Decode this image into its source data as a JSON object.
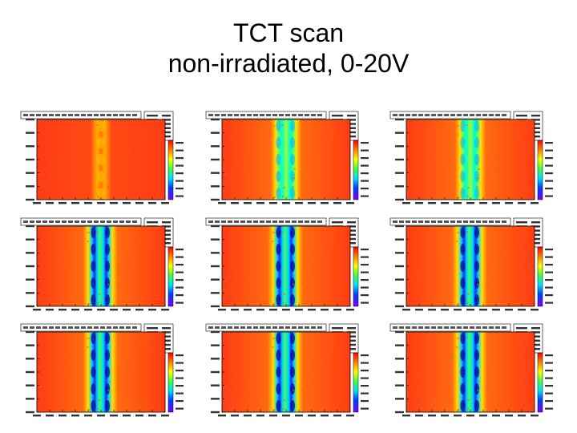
{
  "slide": {
    "title_line1": "TCT scan",
    "title_line2": "non-irradiated, 0-20V"
  },
  "colors": {
    "background": "#ffffff",
    "map_base": "#ff3c14",
    "plot_frame": "#000000"
  },
  "chart_data": [
    {
      "type": "heatmap",
      "panel": 1,
      "pattern": "red-yellow stripes, weak"
    },
    {
      "type": "heatmap",
      "panel": 2,
      "pattern": "green/cyan stripes"
    },
    {
      "type": "heatmap",
      "panel": 3,
      "pattern": "green/cyan stripes"
    },
    {
      "type": "heatmap",
      "panel": 4,
      "pattern": "blue stripes, strong"
    },
    {
      "type": "heatmap",
      "panel": 5,
      "pattern": "blue stripes, strong"
    },
    {
      "type": "heatmap",
      "panel": 6,
      "pattern": "blue stripes, strong"
    },
    {
      "type": "heatmap",
      "panel": 7,
      "pattern": "blue stripes, strong"
    },
    {
      "type": "heatmap",
      "panel": 8,
      "pattern": "blue stripes, strong"
    },
    {
      "type": "heatmap",
      "panel": 9,
      "pattern": "blue stripes, strong"
    }
  ]
}
